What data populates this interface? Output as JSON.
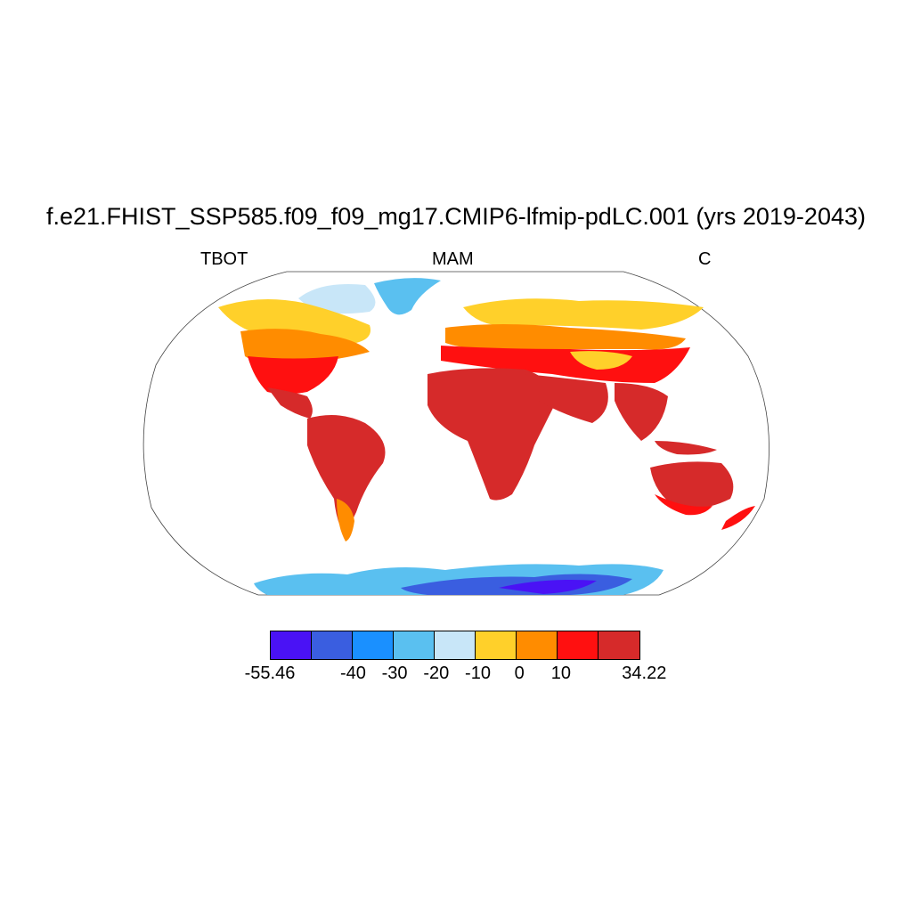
{
  "title": "f.e21.FHIST_SSP585.f09_f09_mg17.CMIP6-lfmip-pdLC.001 (yrs 2019-2043)",
  "subtitle_left": "TBOT",
  "subtitle_center": "MAM",
  "subtitle_right": "C",
  "colorbar": {
    "colors": [
      "#4a12f5",
      "#3a5ee0",
      "#1a90ff",
      "#5ac0f0",
      "#c8e6f8",
      "#ffd02a",
      "#ff8c00",
      "#ff1010",
      "#d62a2a"
    ],
    "labels": [
      "-55.46",
      "-40",
      "-30",
      "-20",
      "-10",
      "0",
      "10",
      "34.22"
    ]
  }
}
